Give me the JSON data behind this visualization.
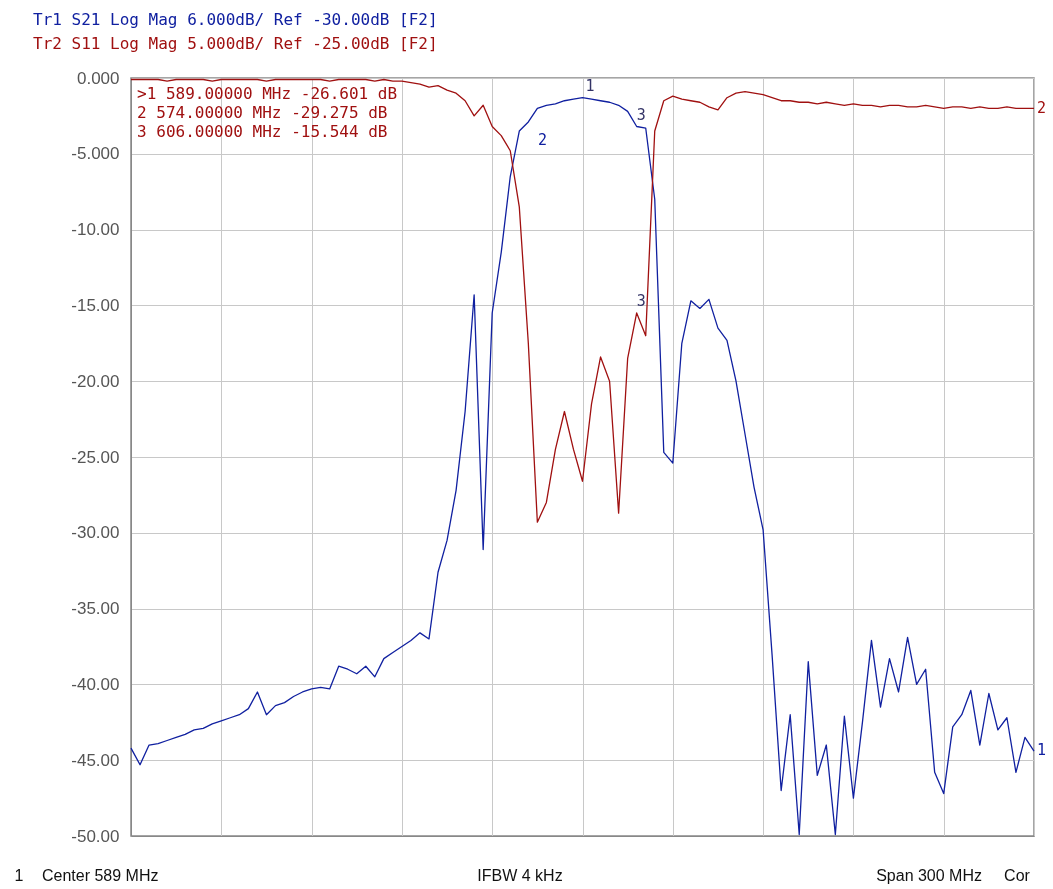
{
  "chart_data": {
    "type": "line",
    "ylim": [
      -50,
      0
    ],
    "yticks": [
      {
        "value": 0,
        "label": "0.000"
      },
      {
        "value": -5,
        "label": "-5.000"
      },
      {
        "value": -10,
        "label": "-10.00"
      },
      {
        "value": -15,
        "label": "-15.00"
      },
      {
        "value": -20,
        "label": "-20.00"
      },
      {
        "value": -25,
        "label": "-25.00"
      },
      {
        "value": -30,
        "label": "-30.00"
      },
      {
        "value": -35,
        "label": "-35.00"
      },
      {
        "value": -40,
        "label": "-40.00"
      },
      {
        "value": -45,
        "label": "-45.00"
      },
      {
        "value": -50,
        "label": "-50.00"
      }
    ],
    "categories": [
      null,
      null,
      null,
      null,
      null,
      null,
      null,
      null,
      null,
      null,
      null,
      null,
      null,
      null,
      null,
      null,
      null,
      null,
      null,
      null,
      null,
      null,
      null,
      null,
      null,
      null,
      null,
      null,
      null,
      null,
      null,
      null,
      null,
      null,
      null,
      null,
      null,
      null,
      null,
      null,
      null,
      null,
      null,
      null,
      null,
      null,
      null,
      null,
      null,
      null,
      null,
      null,
      null,
      null,
      null,
      null,
      null,
      null,
      null,
      null,
      null,
      null,
      null,
      null,
      null,
      null,
      null,
      null,
      null,
      null,
      null,
      null,
      null,
      null,
      null,
      null,
      null,
      null,
      null,
      null,
      null,
      null,
      null,
      null,
      null,
      null,
      null,
      null,
      null,
      null,
      null,
      null,
      null,
      null,
      null,
      null,
      null,
      null,
      null,
      null,
      null
    ],
    "series": [
      {
        "name": "Tr1  S21  Log Mag 6.000dB/ Ref -30.00dB [F2]",
        "color": "#1020a0",
        "values": [
          -44.2,
          -45.3,
          -44.0,
          -43.9,
          -43.7,
          -43.5,
          -43.3,
          -43.0,
          -42.9,
          -42.6,
          -42.4,
          -42.2,
          -42.0,
          -41.6,
          -40.5,
          -42.0,
          -41.4,
          -41.2,
          -40.8,
          -40.5,
          -40.3,
          -40.2,
          -40.3,
          -38.8,
          -39.0,
          -39.3,
          -38.8,
          -39.5,
          -38.3,
          -37.9,
          -37.5,
          -37.1,
          -36.6,
          -37.0,
          -32.6,
          -30.5,
          -27.2,
          -22.0,
          -14.3,
          -31.1,
          -15.5,
          -11.5,
          -6.5,
          -3.5,
          -2.9,
          -2.0,
          -1.8,
          -1.7,
          -1.5,
          -1.4,
          -1.3,
          -1.4,
          -1.5,
          -1.6,
          -1.8,
          -2.2,
          -3.2,
          -3.3,
          -8.0,
          -24.7,
          -25.4,
          -17.5,
          -14.7,
          -15.2,
          -14.6,
          -16.5,
          -17.3,
          -20.0,
          -23.5,
          -27.0,
          -29.8,
          -38.1,
          -47.0,
          -42.0,
          -49.9,
          -38.5,
          -46.0,
          -44.0,
          -49.9,
          -42.1,
          -47.5,
          -42.5,
          -37.1,
          -41.5,
          -38.3,
          -40.5,
          -36.9,
          -40.0,
          -39.0,
          -45.8,
          -47.2,
          -42.8,
          -42.0,
          -40.4,
          -44.0,
          -40.6,
          -43.0,
          -42.2,
          -45.8,
          -43.5,
          -44.4
        ]
      },
      {
        "name": "Tr2  S11  Log Mag 5.000dB/ Ref -25.00dB [F2]",
        "color": "#a01010",
        "values": [
          -0.1,
          -0.1,
          -0.1,
          -0.1,
          -0.2,
          -0.1,
          -0.1,
          -0.1,
          -0.1,
          -0.2,
          -0.1,
          -0.1,
          -0.1,
          -0.1,
          -0.1,
          -0.2,
          -0.1,
          -0.1,
          -0.1,
          -0.1,
          -0.1,
          -0.1,
          -0.2,
          -0.1,
          -0.1,
          -0.1,
          -0.1,
          -0.2,
          -0.1,
          -0.2,
          -0.2,
          -0.3,
          -0.4,
          -0.6,
          -0.5,
          -0.8,
          -1.0,
          -1.5,
          -2.5,
          -1.8,
          -3.2,
          -3.8,
          -4.8,
          -8.5,
          -17.5,
          -29.3,
          -28.0,
          -24.5,
          -22.0,
          -24.5,
          -26.6,
          -21.5,
          -18.4,
          -20.0,
          -28.7,
          -18.5,
          -15.5,
          -17.0,
          -3.5,
          -1.5,
          -1.2,
          -1.4,
          -1.5,
          -1.6,
          -1.9,
          -2.1,
          -1.3,
          -1.0,
          -0.9,
          -1.0,
          -1.1,
          -1.3,
          -1.5,
          -1.5,
          -1.6,
          -1.6,
          -1.7,
          -1.6,
          -1.7,
          -1.8,
          -1.7,
          -1.8,
          -1.8,
          -1.9,
          -1.8,
          -1.8,
          -1.9,
          -1.9,
          -1.8,
          -1.9,
          -2.0,
          -1.9,
          -1.9,
          -2.0,
          -1.9,
          -2.0,
          -2.0,
          -1.9,
          -2.0,
          -2.0,
          -2.0
        ]
      }
    ],
    "annotations": [
      ">1   589.00000 MHz  -26.601 dB",
      "  2   574.00000 MHz  -29.275 dB",
      "  3   606.00000 MHz  -15.544 dB",
      "1",
      "Center 589 MHz",
      "IFBW 4 kHz",
      "Span 300 MHz",
      "Cor",
      "2",
      "1",
      "2",
      {
        "text": "1",
        "y": -1.3
      },
      {
        "text": "3",
        "y": -3.2
      },
      {
        "text": "3",
        "y": -15.5
      }
    ],
    "grid": true,
    "tick_labels": "y",
    "line_style": "solid"
  }
}
